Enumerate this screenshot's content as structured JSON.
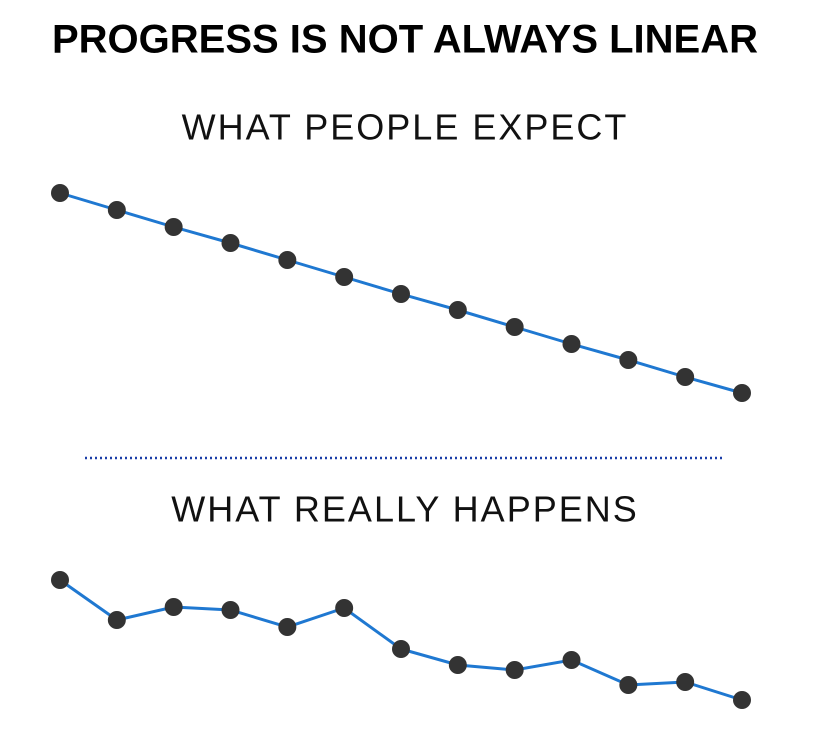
{
  "title": "PROGRESS IS NOT ALWAYS LINEAR",
  "chart_data": [
    {
      "type": "line",
      "title": "WHAT PEOPLE EXPECT",
      "values": [
        207,
        190,
        173,
        157,
        140,
        123,
        106,
        90,
        73,
        56,
        40,
        23,
        7
      ],
      "ylim": [
        0,
        210
      ],
      "line_color": "#1f78d1",
      "marker_color": "#333333"
    },
    {
      "type": "line",
      "title": "WHAT REALLY HAPPENS",
      "values": [
        130,
        90,
        103,
        100,
        83,
        102,
        61,
        45,
        40,
        50,
        25,
        28,
        10
      ],
      "ylim": [
        0,
        140
      ],
      "line_color": "#1f78d1",
      "marker_color": "#333333"
    }
  ]
}
